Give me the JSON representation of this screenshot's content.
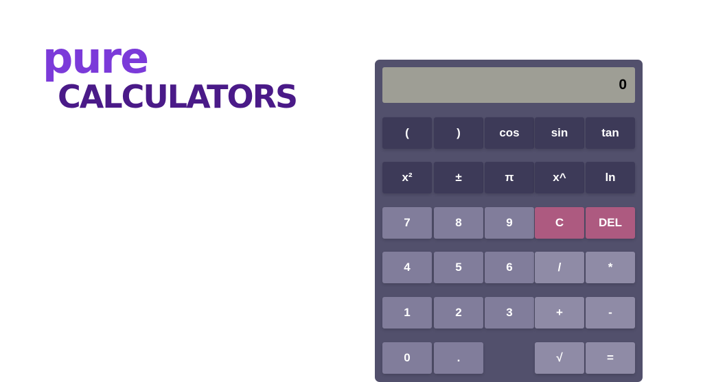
{
  "logo": {
    "line1": "pure",
    "line2": "CALCULATORS"
  },
  "display": {
    "value": "0"
  },
  "colors": {
    "panel": "#52506c",
    "function_key": "#3d3a58",
    "number_key": "#817d9b",
    "operator_key": "#8f8ba6",
    "clear_key": "#ad5a80",
    "display": "#9e9e95"
  },
  "keys": [
    [
      {
        "label": "(",
        "type": "dark",
        "name": "open-paren"
      },
      {
        "label": ")",
        "type": "dark",
        "name": "close-paren"
      },
      {
        "label": "cos",
        "type": "dark",
        "name": "cos"
      },
      {
        "label": "sin",
        "type": "dark",
        "name": "sin"
      },
      {
        "label": "tan",
        "type": "dark",
        "name": "tan"
      }
    ],
    [
      {
        "label": "x²",
        "type": "dark",
        "name": "square"
      },
      {
        "label": "±",
        "type": "dark",
        "name": "plus-minus"
      },
      {
        "label": "π",
        "type": "dark",
        "name": "pi"
      },
      {
        "label": "x^",
        "type": "dark",
        "name": "power"
      },
      {
        "label": "ln",
        "type": "dark",
        "name": "ln"
      }
    ],
    [
      {
        "label": "7",
        "type": "num",
        "name": "7"
      },
      {
        "label": "8",
        "type": "num",
        "name": "8"
      },
      {
        "label": "9",
        "type": "num",
        "name": "9"
      },
      {
        "label": "C",
        "type": "red",
        "name": "clear"
      },
      {
        "label": "DEL",
        "type": "red",
        "name": "delete"
      }
    ],
    [
      {
        "label": "4",
        "type": "num",
        "name": "4"
      },
      {
        "label": "5",
        "type": "num",
        "name": "5"
      },
      {
        "label": "6",
        "type": "num",
        "name": "6"
      },
      {
        "label": "/",
        "type": "op",
        "name": "divide"
      },
      {
        "label": "*",
        "type": "op",
        "name": "multiply"
      }
    ],
    [
      {
        "label": "1",
        "type": "num",
        "name": "1"
      },
      {
        "label": "2",
        "type": "num",
        "name": "2"
      },
      {
        "label": "3",
        "type": "num",
        "name": "3"
      },
      {
        "label": "+",
        "type": "op",
        "name": "add"
      },
      {
        "label": "-",
        "type": "op",
        "name": "subtract"
      }
    ],
    [
      {
        "label": "0",
        "type": "num",
        "name": "0"
      },
      {
        "label": ".",
        "type": "num",
        "name": "decimal"
      },
      null,
      {
        "label": "√",
        "type": "op",
        "name": "sqrt"
      },
      {
        "label": "=",
        "type": "op",
        "name": "equals"
      }
    ]
  ]
}
